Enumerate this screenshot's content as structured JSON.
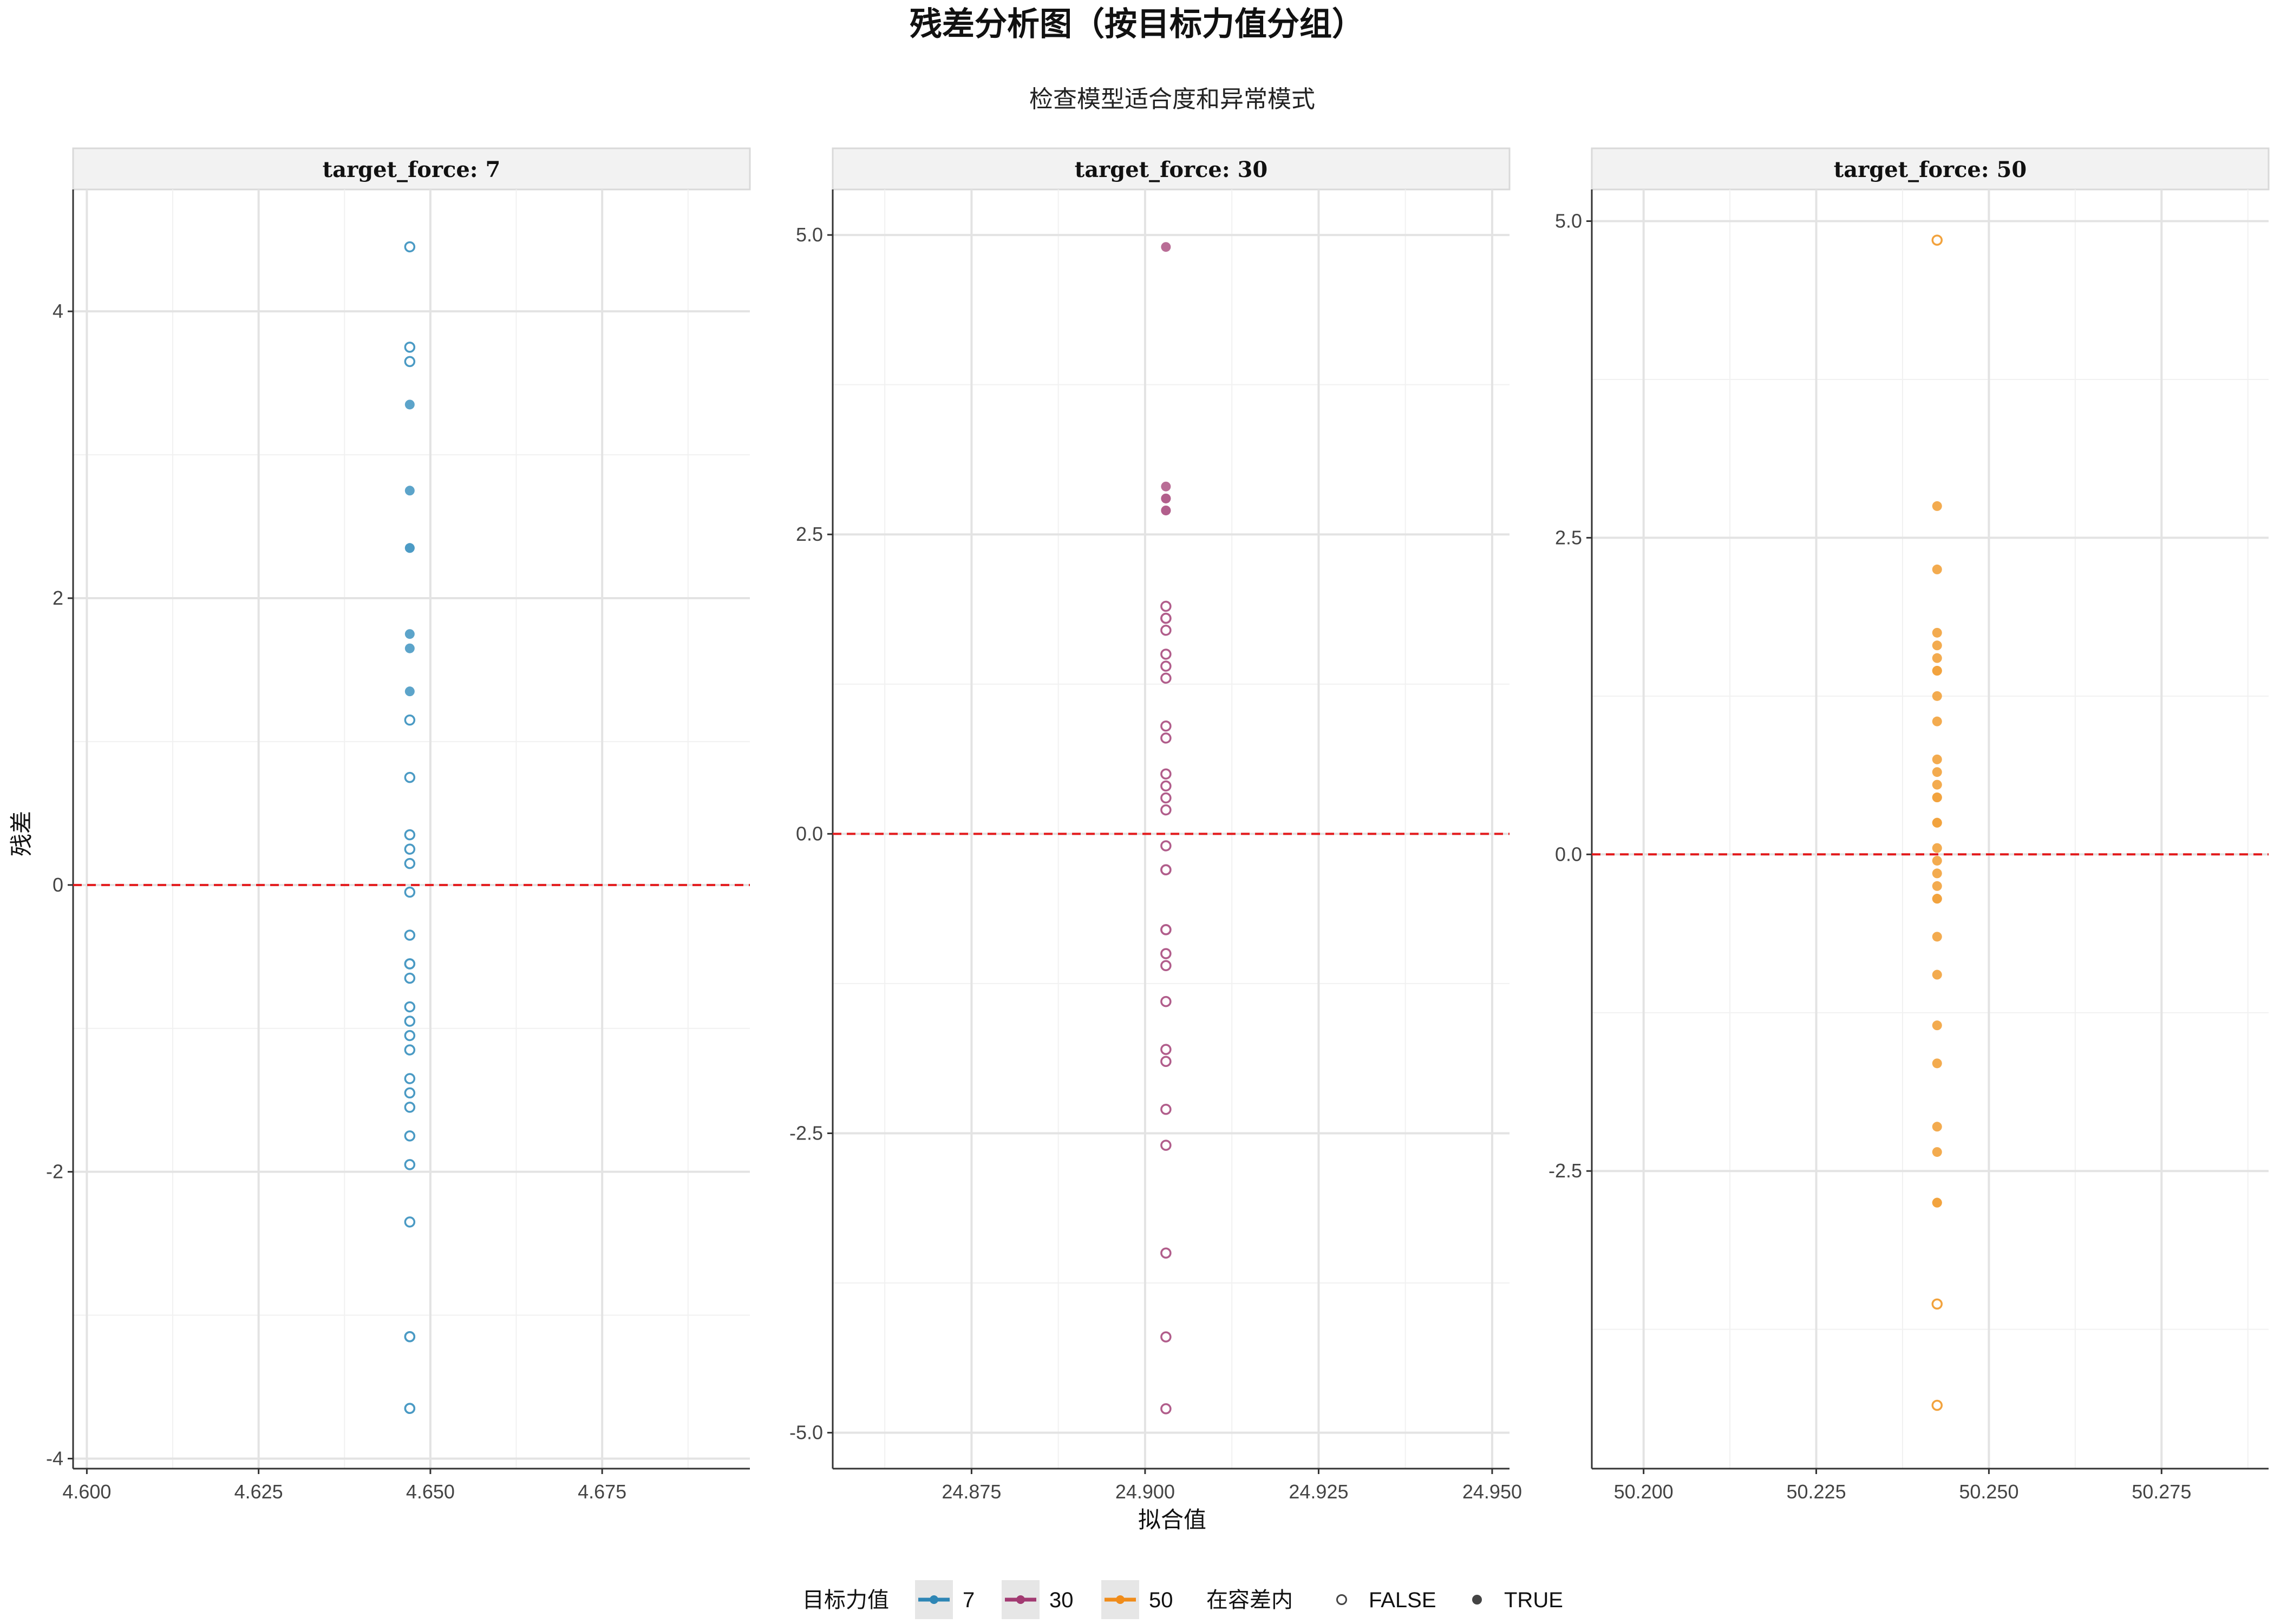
{
  "chart_data": {
    "type": "scatter",
    "title": "残差分析图（按目标力值分组）",
    "subtitle": "检查模型适合度和异常模式",
    "xlabel": "拟合值",
    "ylabel": "残差",
    "grid": true,
    "reference_line": {
      "y": 0,
      "color": "#e31a1c",
      "style": "dashed"
    },
    "legend": {
      "placement": "bottom",
      "color_title": "目标力值",
      "color_items": [
        {
          "label": "7",
          "color": "#2e86b5"
        },
        {
          "label": "30",
          "color": "#a23b72"
        },
        {
          "label": "50",
          "color": "#f08c1a"
        }
      ],
      "shape_title": "在容差内",
      "shape_items": [
        {
          "label": "FALSE",
          "filled": false
        },
        {
          "label": "TRUE",
          "filled": true
        }
      ]
    },
    "panels": [
      {
        "strip": "target_force: 7",
        "color": "#4a9ac4",
        "xlim": [
          4.598,
          4.6965
        ],
        "ylim": [
          -4.07,
          4.85
        ],
        "xticks": [
          4.6,
          4.625,
          4.65,
          4.675
        ],
        "xtick_labels": [
          "4.600",
          "4.625",
          "4.650",
          "4.675"
        ],
        "yticks": [
          -4,
          -2,
          0,
          2,
          4
        ],
        "ytick_labels": [
          "-4",
          "-2",
          "0",
          "2",
          "4"
        ],
        "x_fitted": 4.647,
        "points_true": [
          3.35,
          2.75,
          2.35,
          2.35,
          1.75,
          1.65,
          1.35
        ],
        "points_false": [
          4.45,
          3.75,
          3.65,
          1.15,
          0.75,
          0.35,
          0.25,
          0.15,
          -0.05,
          -0.35,
          -0.55,
          -0.55,
          -0.65,
          -0.85,
          -0.95,
          -1.05,
          -1.15,
          -1.35,
          -1.45,
          -1.55,
          -1.75,
          -1.95,
          -2.35,
          -3.15,
          -3.15,
          -3.65,
          -3.65
        ]
      },
      {
        "strip": "target_force: 30",
        "color": "#b15d8b",
        "xlim": [
          24.855,
          24.9525
        ],
        "ylim": [
          -5.3,
          5.38
        ],
        "xticks": [
          24.875,
          24.9,
          24.925,
          24.95
        ],
        "xtick_labels": [
          "24.875",
          "24.900",
          "24.925",
          "24.950"
        ],
        "yticks": [
          -5,
          -2.5,
          0,
          2.5,
          5
        ],
        "ytick_labels": [
          "-5.0",
          "-2.5",
          "0.0",
          "2.5",
          "5.0"
        ],
        "x_fitted": 24.903,
        "points_true": [
          4.9,
          2.9,
          2.8,
          2.8,
          2.7,
          2.7
        ],
        "points_false": [
          1.9,
          1.8,
          1.8,
          1.7,
          1.5,
          1.4,
          1.3,
          0.9,
          0.8,
          0.5,
          0.4,
          0.3,
          0.2,
          -0.1,
          -0.3,
          -0.3,
          -0.8,
          -0.8,
          -1.0,
          -1.1,
          -1.4,
          -1.8,
          -1.9,
          -2.3,
          -2.6,
          -3.5,
          -4.2,
          -4.8
        ]
      },
      {
        "strip": "target_force: 50",
        "color": "#f2a23c",
        "xlim": [
          50.1925,
          50.2905
        ],
        "ylim": [
          -4.85,
          5.25
        ],
        "xticks": [
          50.2,
          50.225,
          50.25,
          50.275
        ],
        "xtick_labels": [
          "50.200",
          "50.225",
          "50.250",
          "50.275"
        ],
        "yticks": [
          -2.5,
          0,
          2.5,
          5
        ],
        "ytick_labels": [
          "-2.5",
          "0.0",
          "2.5",
          "5.0"
        ],
        "x_fitted": 50.2425,
        "points_true": [
          2.75,
          2.25,
          1.75,
          1.65,
          1.55,
          1.45,
          1.45,
          1.25,
          1.05,
          0.75,
          0.65,
          0.55,
          0.45,
          0.45,
          0.25,
          0.25,
          0.05,
          -0.05,
          -0.15,
          -0.25,
          -0.35,
          -0.35,
          -0.65,
          -0.95,
          -1.35,
          -1.65,
          -2.15,
          -2.35,
          -2.75,
          -2.75
        ],
        "points_false": [
          4.85,
          -3.55,
          -4.35
        ]
      }
    ]
  }
}
